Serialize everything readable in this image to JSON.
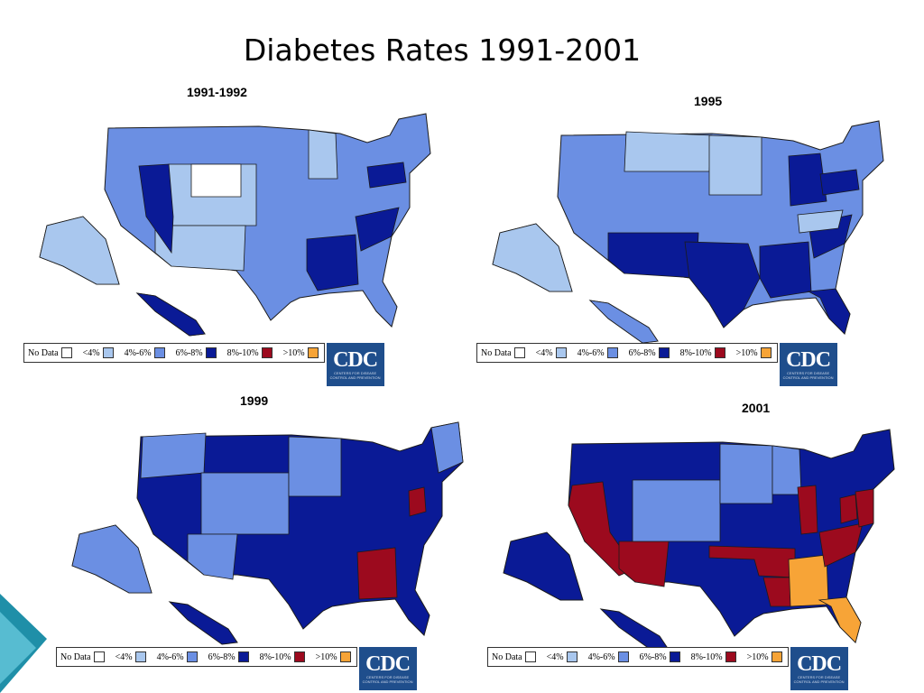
{
  "title": "Diabetes Rates 1991-2001",
  "colors": {
    "no_data": "#ffffff",
    "lt4": "#a9c7ee",
    "p4_6": "#6b8fe3",
    "p6_8": "#0a1a96",
    "p8_10": "#9c0a1e",
    "gt10": "#f7a437"
  },
  "legend": {
    "items": [
      {
        "label": "No Data",
        "key": "no_data"
      },
      {
        "label": "<4%",
        "key": "lt4"
      },
      {
        "label": "4%-6%",
        "key": "p4_6"
      },
      {
        "label": "6%-8%",
        "key": "p6_8"
      },
      {
        "label": "8%-10%",
        "key": "p8_10"
      },
      {
        "label": ">10%",
        "key": "gt10"
      }
    ],
    "logo_text": "CDC",
    "logo_subtext": "CENTERS FOR DISEASE CONTROL AND PREVENTION"
  },
  "panels": [
    {
      "year": "1991-1992",
      "base": "p4_6",
      "highlights": [
        {
          "region": "rockies",
          "key": "lt4"
        },
        {
          "region": "wyoming",
          "key": "no_data"
        },
        {
          "region": "southwest",
          "key": "lt4"
        },
        {
          "region": "alaska",
          "key": "lt4"
        },
        {
          "region": "nevada",
          "key": "p6_8"
        },
        {
          "region": "deep-south",
          "key": "p6_8"
        },
        {
          "region": "carolinas",
          "key": "p6_8"
        },
        {
          "region": "pennsylvania",
          "key": "p6_8"
        },
        {
          "region": "hawaii",
          "key": "p6_8"
        },
        {
          "region": "minnesota",
          "key": "lt4"
        }
      ]
    },
    {
      "year": "1995",
      "base": "p4_6",
      "highlights": [
        {
          "region": "montana",
          "key": "lt4"
        },
        {
          "region": "dakotas",
          "key": "lt4"
        },
        {
          "region": "alaska",
          "key": "lt4"
        },
        {
          "region": "southwest",
          "key": "p6_8"
        },
        {
          "region": "texas",
          "key": "p6_8"
        },
        {
          "region": "deep-south",
          "key": "p6_8"
        },
        {
          "region": "florida",
          "key": "p6_8"
        },
        {
          "region": "carolinas",
          "key": "p6_8"
        },
        {
          "region": "midwest",
          "key": "p6_8"
        },
        {
          "region": "pennsylvania",
          "key": "p6_8"
        },
        {
          "region": "kentucky",
          "key": "lt4"
        },
        {
          "region": "hawaii",
          "key": "p4_6"
        }
      ]
    },
    {
      "year": "1999",
      "base": "p6_8",
      "highlights": [
        {
          "region": "pacific-nw",
          "key": "p4_6"
        },
        {
          "region": "rockies",
          "key": "p4_6"
        },
        {
          "region": "dakotas",
          "key": "p4_6"
        },
        {
          "region": "alaska",
          "key": "p4_6"
        },
        {
          "region": "arizona",
          "key": "p4_6"
        },
        {
          "region": "mississippi-alabama",
          "key": "p8_10"
        },
        {
          "region": "west-virginia",
          "key": "p8_10"
        },
        {
          "region": "new-england",
          "key": "p4_6"
        }
      ]
    },
    {
      "year": "2001",
      "base": "p6_8",
      "highlights": [
        {
          "region": "california",
          "key": "p8_10"
        },
        {
          "region": "arizona",
          "key": "p8_10"
        },
        {
          "region": "rockies",
          "key": "p4_6"
        },
        {
          "region": "dakotas",
          "key": "p4_6"
        },
        {
          "region": "minnesota",
          "key": "p4_6"
        },
        {
          "region": "oklahoma-arkansas",
          "key": "p8_10"
        },
        {
          "region": "louisiana",
          "key": "p8_10"
        },
        {
          "region": "mississippi-alabama",
          "key": "gt10"
        },
        {
          "region": "florida",
          "key": "gt10"
        },
        {
          "region": "carolinas",
          "key": "p8_10"
        },
        {
          "region": "illinois",
          "key": "p8_10"
        },
        {
          "region": "west-virginia",
          "key": "p8_10"
        },
        {
          "region": "mid-atlantic",
          "key": "p8_10"
        }
      ]
    }
  ]
}
